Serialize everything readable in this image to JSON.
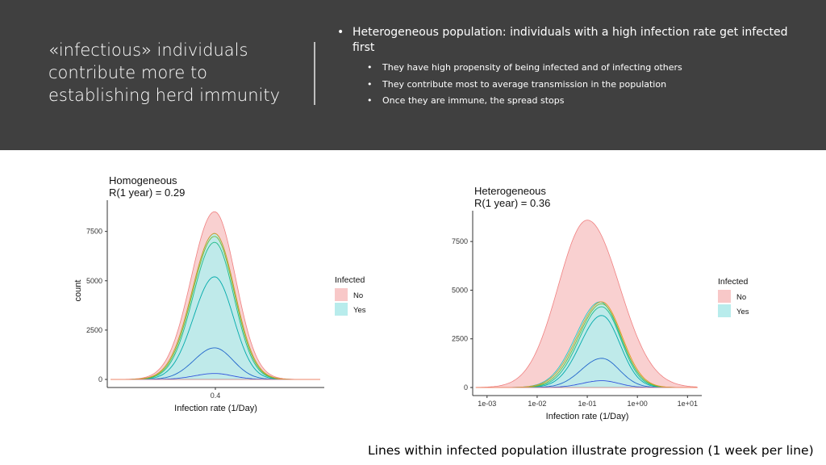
{
  "slide": {
    "title": "«infectious» individuals contribute more to establishing herd immunity",
    "main_bullet": "Heterogeneous population: individuals with a high infection rate get infected first",
    "sub_bullets": [
      "They have high propensity of being infected and of infecting others",
      "They contribute most to average transmission in the population",
      "Once they are immune, the spread stops"
    ],
    "caption": "Lines within infected population illustrate progression (1 week per line)"
  },
  "colors": {
    "header_bg": "#404040",
    "no_fill": "#f8c8c8",
    "no_line": "#f08080",
    "yes_fill": "#b8ecec",
    "yes_line": "#20c0c0",
    "week_lines": [
      "#3355dd",
      "#2266cc",
      "#00aaaa",
      "#22bb88",
      "#77bb33",
      "#dd9922"
    ]
  },
  "chart_data": [
    {
      "type": "area",
      "title": "Homogeneous",
      "subtitle": "R(1 year) = 0.29",
      "xlabel": "Infection rate (1/Day)",
      "ylabel": "count",
      "x_scale": "linear",
      "x_ticks": [
        {
          "value": 0.4,
          "label": "0.4"
        }
      ],
      "y_ticks": [
        0,
        2500,
        5000,
        7500
      ],
      "ylim": [
        0,
        9000
      ],
      "legend": {
        "title": "Infected",
        "entries": [
          "No",
          "Yes"
        ],
        "placement": "right"
      },
      "series": [
        {
          "name": "No",
          "peak": 8500
        },
        {
          "name": "Yes",
          "peak": 7400
        }
      ],
      "week_line_peaks": [
        300,
        1600,
        5200,
        6950,
        7250,
        7400
      ]
    },
    {
      "type": "area",
      "title": "Heterogeneous",
      "subtitle": "R(1 year) = 0.36",
      "xlabel": "Infection rate (1/Day)",
      "ylabel": "count",
      "x_scale": "log",
      "x_ticks": [
        {
          "value": 0.001,
          "label": "1e-03"
        },
        {
          "value": 0.01,
          "label": "1e-02"
        },
        {
          "value": 0.1,
          "label": "1e-01"
        },
        {
          "value": 1,
          "label": "1e+00"
        },
        {
          "value": 10,
          "label": "1e+01"
        }
      ],
      "y_ticks": [
        0,
        2500,
        5000,
        7500
      ],
      "ylim": [
        0,
        9000
      ],
      "legend": {
        "title": "Infected",
        "entries": [
          "No",
          "Yes"
        ],
        "placement": "right"
      },
      "series": [
        {
          "name": "No",
          "peak": 8600
        },
        {
          "name": "Yes",
          "peak": 4400
        }
      ],
      "week_line_peaks": [
        350,
        1500,
        3700,
        4150,
        4300,
        4400
      ]
    }
  ]
}
